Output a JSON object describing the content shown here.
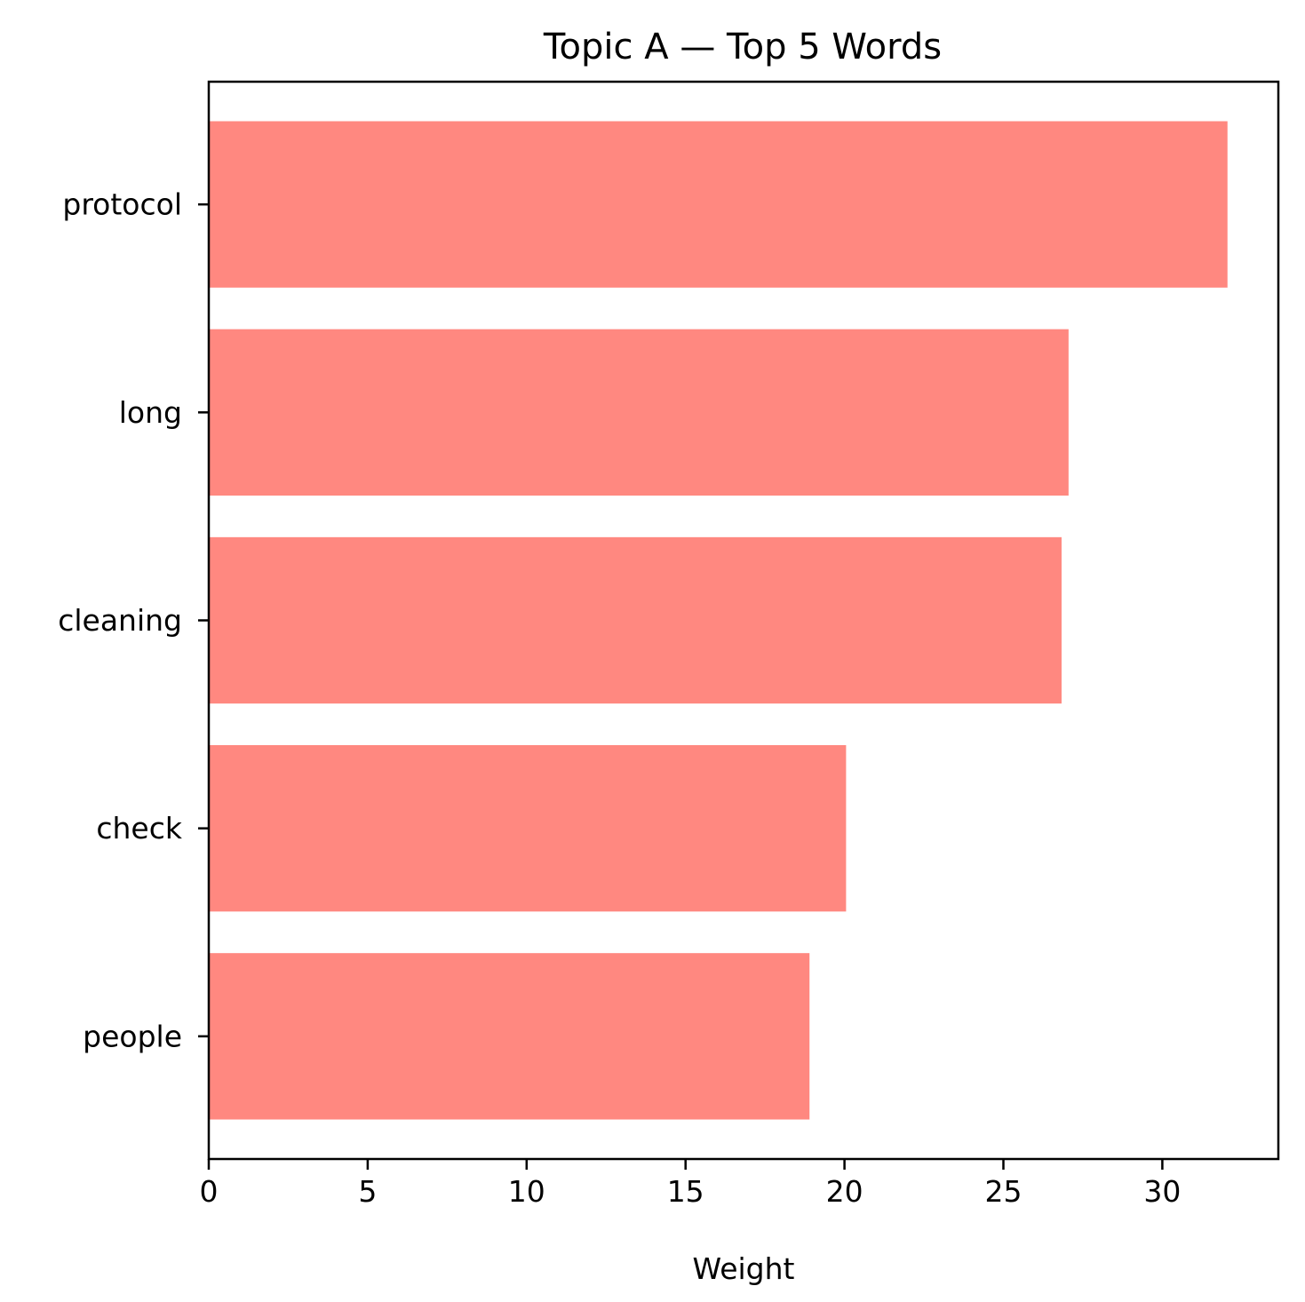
{
  "chart_data": {
    "type": "bar",
    "orientation": "horizontal",
    "title": "Topic A — Top 5 Words",
    "xlabel": "Weight",
    "ylabel": "",
    "categories": [
      "protocol",
      "long",
      "cleaning",
      "check",
      "people"
    ],
    "values": [
      32.05,
      27.05,
      26.83,
      20.05,
      18.9
    ],
    "xlim": [
      0,
      33.65
    ],
    "xticks": [
      0,
      5,
      10,
      15,
      20,
      25,
      30
    ],
    "bar_color": "#ff8880",
    "grid": false,
    "legend": "none"
  }
}
